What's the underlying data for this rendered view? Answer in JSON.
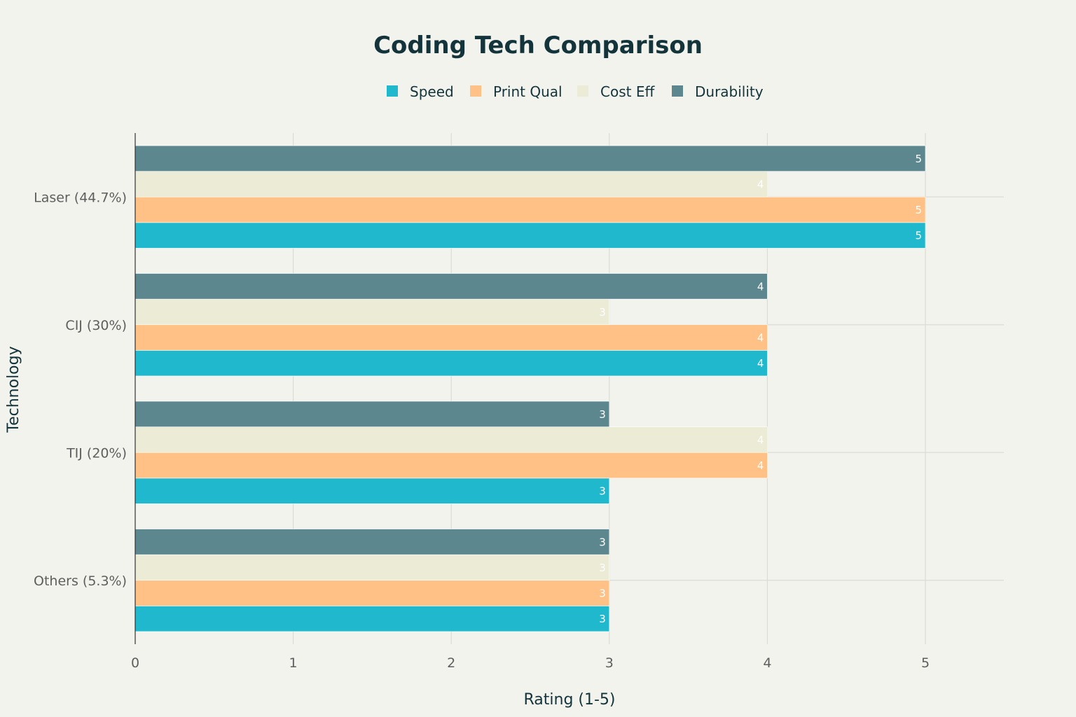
{
  "chart_data": {
    "type": "bar",
    "orientation": "horizontal",
    "title": "Coding Tech Comparison",
    "xlabel": "Rating (1-5)",
    "ylabel": "Technology",
    "xlim": [
      0,
      5.5
    ],
    "xticks": [
      0,
      1,
      2,
      3,
      4,
      5
    ],
    "grid": true,
    "legend_position": "top-center",
    "categories": [
      "Laser (44.7%)",
      "CIJ (30%)",
      "TIJ (20%)",
      "Others (5.3%)"
    ],
    "series": [
      {
        "name": "Speed",
        "color": "#1fb8cd",
        "values": [
          5,
          4,
          3,
          3
        ]
      },
      {
        "name": "Print Qual",
        "color": "#ffc185",
        "values": [
          5,
          4,
          4,
          3
        ]
      },
      {
        "name": "Cost Eff",
        "color": "#eceBd5",
        "values": [
          4,
          3,
          4,
          3
        ]
      },
      {
        "name": "Durability",
        "color": "#5d878f",
        "values": [
          5,
          4,
          3,
          3
        ]
      }
    ]
  }
}
